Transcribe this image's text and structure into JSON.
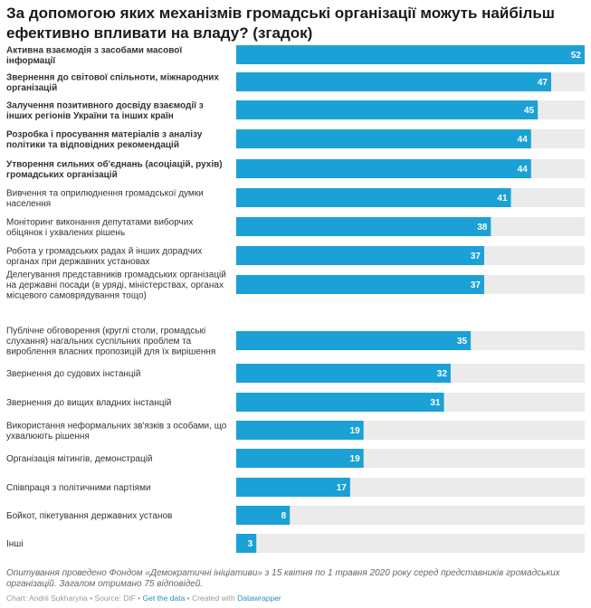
{
  "title": "За допомогою яких механізмів громадські організації можуть найбільш ефективно впливати на владу? (згадок)",
  "colors": {
    "bar": "#1ba1d5",
    "track": "#ebebeb",
    "value_text": "#ffffff",
    "label_text": "#333333"
  },
  "chart_data": {
    "type": "bar",
    "orientation": "horizontal",
    "xlim": [
      0,
      52
    ],
    "categories": [
      "Активна взаємодія з засобами масової інформації",
      "Звернення до світової спільноти, міжнародних організацій",
      "Залучення позитивного досвіду взаємодії з інших регіонів України та інших країн",
      "Розробка і просування матеріалів з аналізу політики та відповідних рекомендацій",
      "Утворення сильних об'єднань (асоціацій, рухів) громадських організацій",
      "Вивчення та оприлюднення громадської думки населення",
      "Моніторинг виконання депутатами виборчих обіцянок і ухвалених рішень",
      "Робота у громадських радах й інших дорадчих органах при державних установах",
      "Делегування представників громадських організацій на державні посади (в уряді, міністерствах, органах місцевого самоврядування тощо)",
      "Публічне обговорення (круглі столи, громадські слухання) нагальних суспільних проблем та вироблення власних пропозицій для їх вирішення",
      "Звернення до судових інстанцій",
      "Звернення до вищих владних інстанцій",
      "Використання неформальних зв'язків з особами, що ухвалюють рішення",
      "Організація мітингів, демонстрацій",
      "Співпраця з політичними партіями",
      "Бойкот, пікетування державних установ",
      "Інші"
    ],
    "values": [
      52,
      47,
      45,
      44,
      44,
      41,
      38,
      37,
      37,
      35,
      32,
      31,
      19,
      19,
      17,
      8,
      3
    ]
  },
  "footnote": "Опитування проведено Фондом «Демократичні ініціативи» з 15 квітня по 1 травня 2020 року серед представників громадських організацій. Загалом отримано 75 відповідей.",
  "credits": {
    "prefix": "Chart: Andrii Sukharyna • Source: DIF • ",
    "get_data": "Get the data",
    "mid": " • Created with ",
    "tool": "Datawrapper"
  }
}
